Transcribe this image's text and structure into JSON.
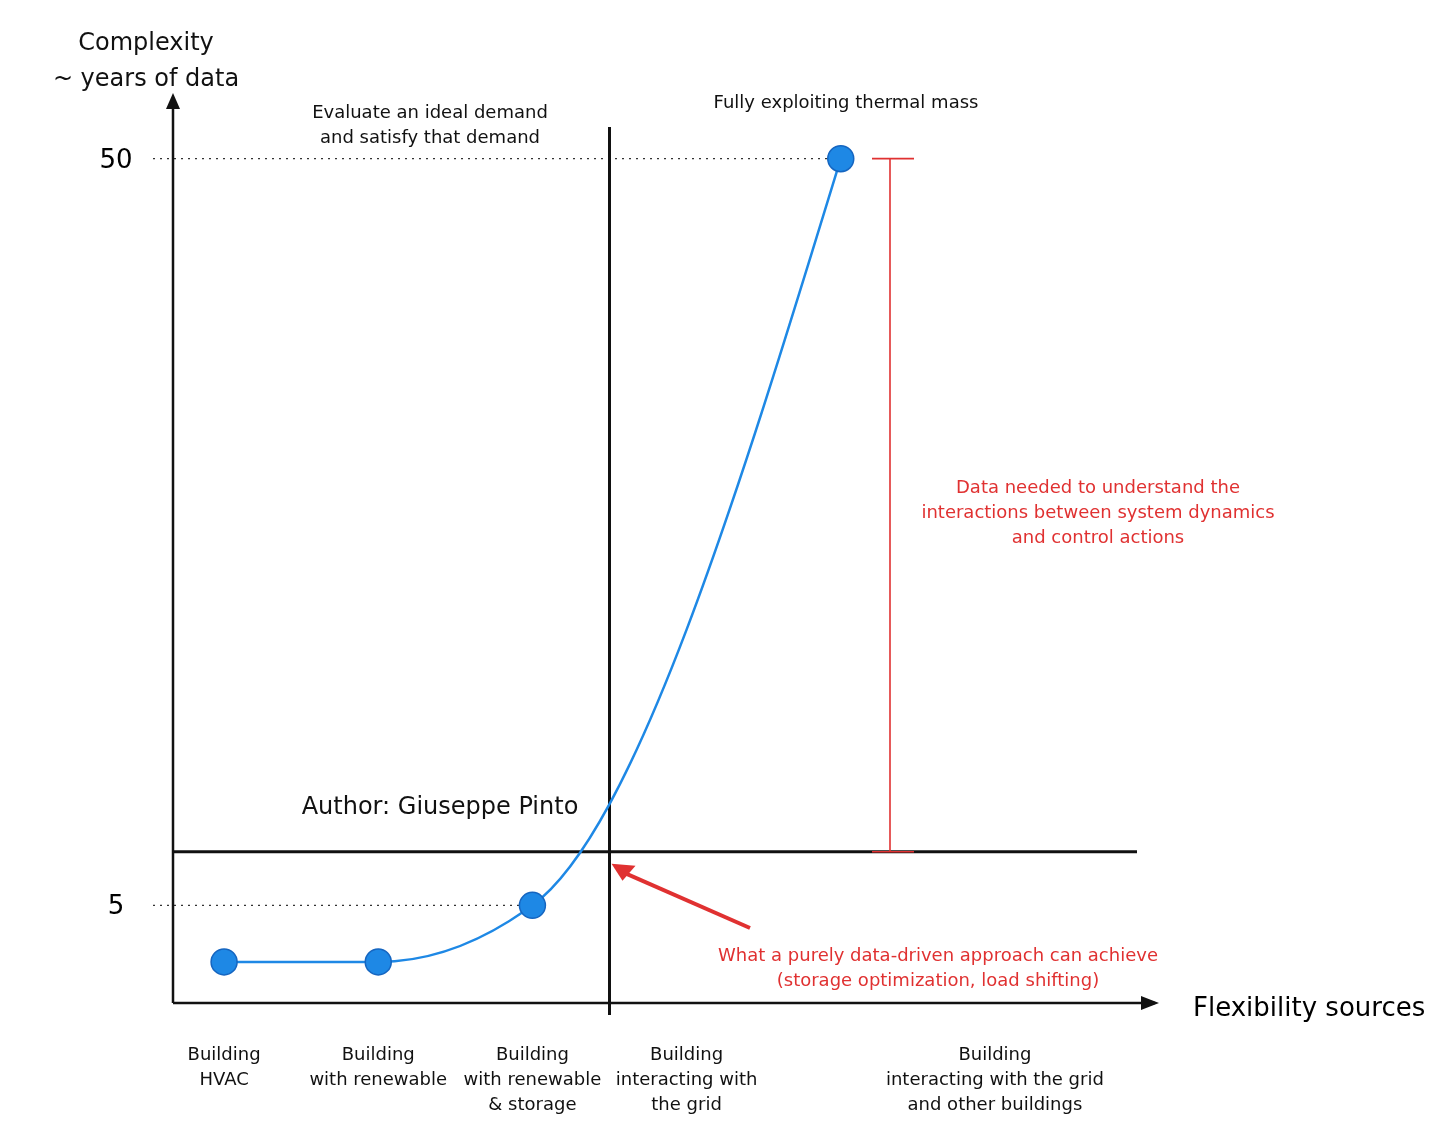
{
  "chart_data": {
    "type": "line",
    "log": "y",
    "xlabel": "Flexibility sources",
    "ylabel": "Complexity\n~ years of data",
    "categories": [
      "Building\nHVAC",
      "Building\nwith renewable",
      "Building\nwith renewable\n& storage",
      "Building\ninteracting with\nthe grid",
      null,
      "Building\ninteracting with the grid\nand other buildings"
    ],
    "series": [
      {
        "color": "#1e88e5",
        "values": [
          4.2,
          4.2,
          5,
          null,
          50,
          null
        ]
      }
    ],
    "marker": "circle",
    "ylim": [
      3.7,
      59
    ],
    "yticks": [
      5,
      50
    ],
    "ref_lines": [
      {
        "axis": "y",
        "value": 5,
        "line_style": "dotted",
        "color": "#333333"
      },
      {
        "axis": "y",
        "value": 50,
        "line_style": "dotted",
        "color": "#333333"
      },
      {
        "axis": "x",
        "value": "Building\ninteracting with\nthe grid",
        "color": "#111111"
      },
      {
        "axis": "y",
        "value": 5.9,
        "color": "#111111"
      }
    ],
    "annotations": [
      "Evaluate an ideal demand\nand satisfy that demand",
      "Fully exploiting thermal mass",
      "Author: Giuseppe Pinto",
      "What a purely data-driven approach can achieve\n(storage optimization, load shifting)",
      "Data needed to understand the\ninteractions between system dynamics\nand control actions"
    ]
  }
}
